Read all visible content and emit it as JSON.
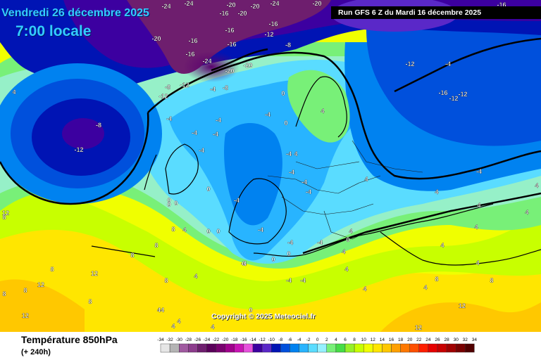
{
  "header": {
    "date_line": "Vendredi 26 décembre 2025",
    "time_line": "7:00 locale",
    "run_banner": "Run GFS 6 Z du Mardi 16 décembre 2025"
  },
  "copyright": "Copyright © 2025 Meteociel.fr",
  "footer": {
    "variable_title": "Température 850hPa",
    "lead_time": "(+ 240h)"
  },
  "legend": {
    "ticks": [
      "-34",
      "-32",
      "-30",
      "-28",
      "-26",
      "-24",
      "-22",
      "-20",
      "-18",
      "-16",
      "-14",
      "-12",
      "-10",
      "-8",
      "-6",
      "-4",
      "-2",
      "0",
      "2",
      "4",
      "6",
      "8",
      "10",
      "12",
      "14",
      "16",
      "18",
      "20",
      "22",
      "24",
      "26",
      "28",
      "30",
      "32",
      "34"
    ],
    "colors": [
      "#e6e6e6",
      "#b4b4b4",
      "#a05aa0",
      "#8c3c8c",
      "#6e1e6e",
      "#5a005a",
      "#78006e",
      "#a0008c",
      "#c814b4",
      "#e650dc",
      "#3c00a0",
      "#5a28c8",
      "#0014b4",
      "#0050dc",
      "#0082f0",
      "#28b4ff",
      "#5adcff",
      "#96f0ff",
      "#78f078",
      "#46dc46",
      "#96f028",
      "#c8ff00",
      "#f0ff00",
      "#ffe600",
      "#ffc800",
      "#ffa000",
      "#ff7800",
      "#ff5000",
      "#ff1e00",
      "#e60000",
      "#c80000",
      "#a00000",
      "#780000",
      "#500000"
    ]
  },
  "map_labels": [
    {
      "text": "-24"
    },
    {
      "text": "-24"
    },
    {
      "text": "-20"
    },
    {
      "text": "-20"
    },
    {
      "text": "-24"
    },
    {
      "text": "-20"
    },
    {
      "text": "-16"
    },
    {
      "text": "-20"
    },
    {
      "text": "-12"
    },
    {
      "text": "-16"
    },
    {
      "text": "-16"
    },
    {
      "text": "-16"
    },
    {
      "text": "-20"
    },
    {
      "text": "-16"
    },
    {
      "text": "-16"
    },
    {
      "text": "-24"
    },
    {
      "text": "-20"
    },
    {
      "text": "-20"
    },
    {
      "text": "-8"
    },
    {
      "text": "-8"
    },
    {
      "text": "-12"
    },
    {
      "text": "-12"
    },
    {
      "text": "-4"
    },
    {
      "text": "-8"
    },
    {
      "text": "-12"
    },
    {
      "text": "-16"
    },
    {
      "text": "-16"
    },
    {
      "text": "-12"
    },
    {
      "text": "-12"
    },
    {
      "text": "-8"
    },
    {
      "text": "-12"
    },
    {
      "text": "-4"
    },
    {
      "text": "-4"
    },
    {
      "text": "-4"
    },
    {
      "text": "-4"
    },
    {
      "text": "-4"
    },
    {
      "text": "-4"
    },
    {
      "text": "-4"
    },
    {
      "text": "-4"
    },
    {
      "text": "-4"
    },
    {
      "text": "-4"
    },
    {
      "text": "-4"
    },
    {
      "text": "-4"
    },
    {
      "text": "-4"
    },
    {
      "text": "-4"
    },
    {
      "text": "-4"
    },
    {
      "text": "-4"
    },
    {
      "text": "-4"
    },
    {
      "text": "-4"
    },
    {
      "text": "-4"
    },
    {
      "text": "0"
    },
    {
      "text": "0"
    },
    {
      "text": "0"
    },
    {
      "text": "0"
    },
    {
      "text": "0"
    },
    {
      "text": "0"
    },
    {
      "text": "0"
    },
    {
      "text": "0"
    },
    {
      "text": "0"
    },
    {
      "text": "0"
    },
    {
      "text": "0"
    },
    {
      "text": "0"
    },
    {
      "text": "0"
    },
    {
      "text": "0"
    },
    {
      "text": "4"
    },
    {
      "text": "4"
    },
    {
      "text": "4"
    },
    {
      "text": "4"
    },
    {
      "text": "4"
    },
    {
      "text": "4"
    },
    {
      "text": "4"
    },
    {
      "text": "4"
    },
    {
      "text": "4"
    },
    {
      "text": "4"
    },
    {
      "text": "4"
    },
    {
      "text": "4"
    },
    {
      "text": "4"
    },
    {
      "text": "4"
    },
    {
      "text": "4"
    },
    {
      "text": "4"
    },
    {
      "text": "4"
    },
    {
      "text": "4"
    },
    {
      "text": "4"
    },
    {
      "text": "4"
    },
    {
      "text": "4"
    },
    {
      "text": "44"
    },
    {
      "text": "8"
    },
    {
      "text": "8"
    },
    {
      "text": "8"
    },
    {
      "text": "8"
    },
    {
      "text": "8"
    },
    {
      "text": "8"
    },
    {
      "text": "8"
    },
    {
      "text": "8"
    },
    {
      "text": "8"
    },
    {
      "text": "8"
    },
    {
      "text": "8"
    },
    {
      "text": "12"
    },
    {
      "text": "12"
    },
    {
      "text": "12"
    },
    {
      "text": "12"
    },
    {
      "text": "12"
    },
    {
      "text": "12"
    },
    {
      "text": "12"
    },
    {
      "text": "16"
    }
  ]
}
